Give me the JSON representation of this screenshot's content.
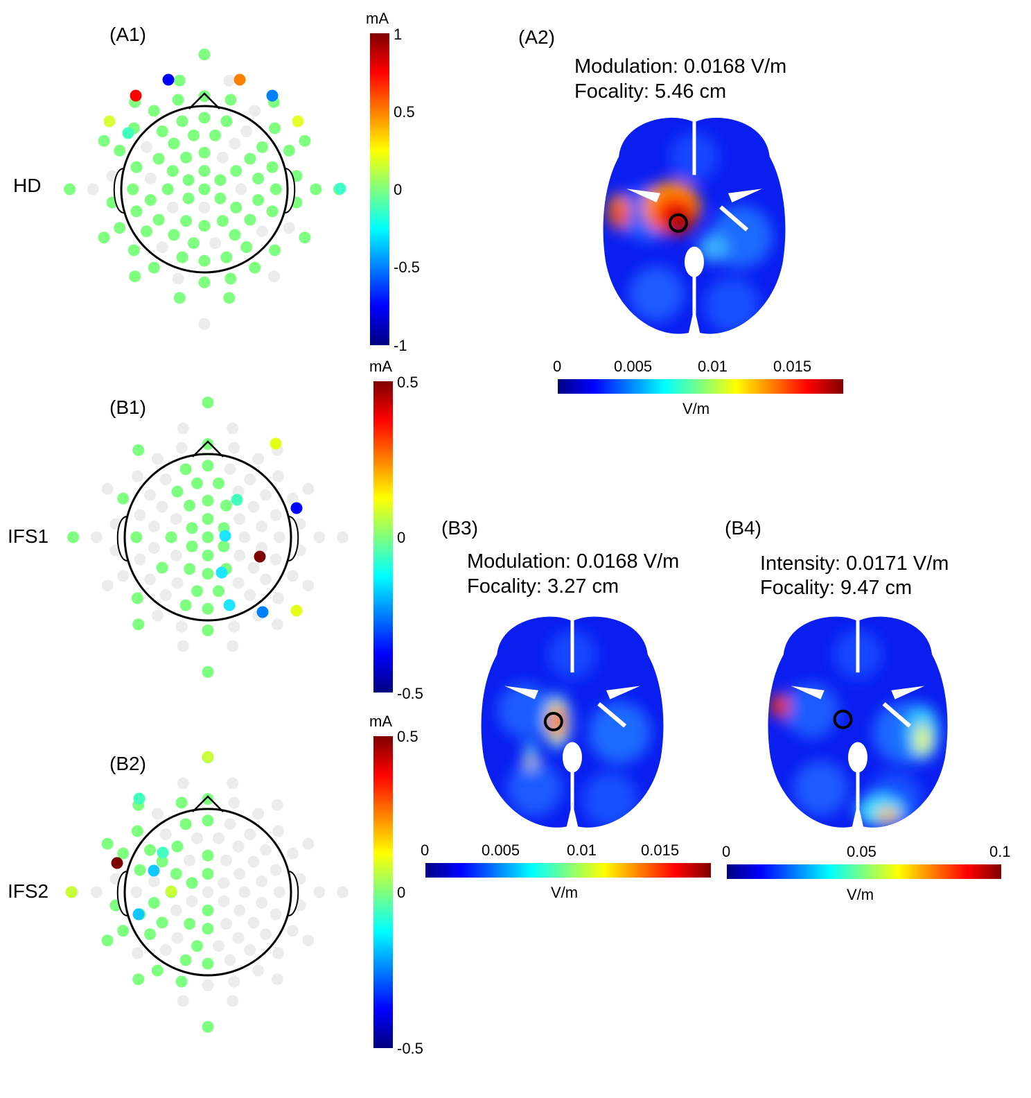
{
  "colors": {
    "jet": [
      "#00007f",
      "#0000ff",
      "#007fff",
      "#00ffff",
      "#7fff7f",
      "#ffff00",
      "#ff7f00",
      "#ff0000",
      "#7f0000"
    ],
    "inactive": "#ececec",
    "outline": "#000000"
  },
  "panels": {
    "a1": {
      "label": "(A1)",
      "row_label": "HD"
    },
    "a2": {
      "label": "(A2)",
      "line1": "Modulation: 0.0168 V/m",
      "line2": "Focality: 5.46 cm"
    },
    "b1": {
      "label": "(B1)",
      "row_label": "IFS1"
    },
    "b2": {
      "label": "(B2)",
      "row_label": "IFS2"
    },
    "b3": {
      "label": "(B3)",
      "line1": "Modulation: 0.0168 V/m",
      "line2": "Focality: 3.27 cm"
    },
    "b4": {
      "label": "(B4)",
      "line1": "Intensity: 0.0171 V/m",
      "line2": "Focality: 9.47 cm"
    }
  },
  "colorbars": {
    "cb1": {
      "unit": "mA",
      "ticks": [
        "1",
        "0.5",
        "0",
        "-0.5",
        "-1"
      ]
    },
    "cb2": {
      "unit": "mA",
      "ticks": [
        "0.5",
        "0",
        "-0.5"
      ]
    },
    "cb3": {
      "unit": "mA",
      "ticks": [
        "0.5",
        "0",
        "-0.5"
      ]
    },
    "a2": {
      "unit": "V/m",
      "ticks": [
        "0",
        "0.005",
        "0.01",
        "0.015"
      ]
    },
    "b3": {
      "unit": "V/m",
      "ticks": [
        "0",
        "0.005",
        "0.01",
        "0.015"
      ]
    },
    "b4": {
      "unit": "V/m",
      "ticks": [
        "0",
        "0.05",
        "0.1"
      ]
    }
  }
}
